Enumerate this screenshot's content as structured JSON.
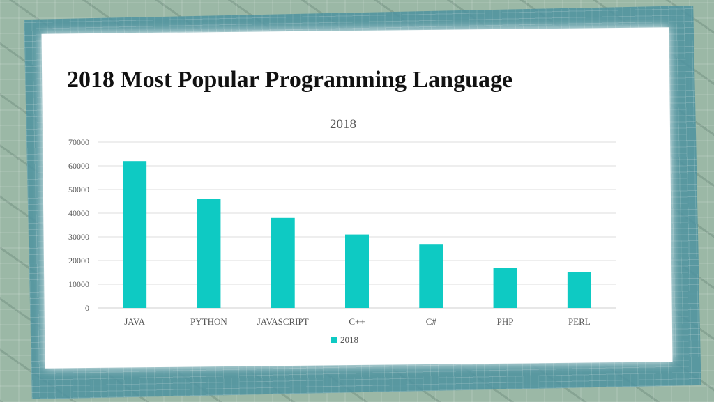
{
  "slide": {
    "title": "2018 Most Popular Programming Language"
  },
  "colors": {
    "bar": "#0ecac3",
    "grid": "#dcdcdc",
    "axis_text": "#555555"
  },
  "chart_data": {
    "type": "bar",
    "title": "2018",
    "categories": [
      "JAVA",
      "PYTHON",
      "JAVASCRIPT",
      "C++",
      "C#",
      "PHP",
      "PERL"
    ],
    "series": [
      {
        "name": "2018",
        "values": [
          62000,
          46000,
          38000,
          31000,
          27000,
          17000,
          15000
        ]
      }
    ],
    "ylim": [
      0,
      70000
    ],
    "yticks": [
      0,
      10000,
      20000,
      30000,
      40000,
      50000,
      60000,
      70000
    ],
    "ytick_labels": [
      "0",
      "10000",
      "20000",
      "30000",
      "40000",
      "50000",
      "60000",
      "70000"
    ],
    "grid": true,
    "legend": "bottom"
  }
}
